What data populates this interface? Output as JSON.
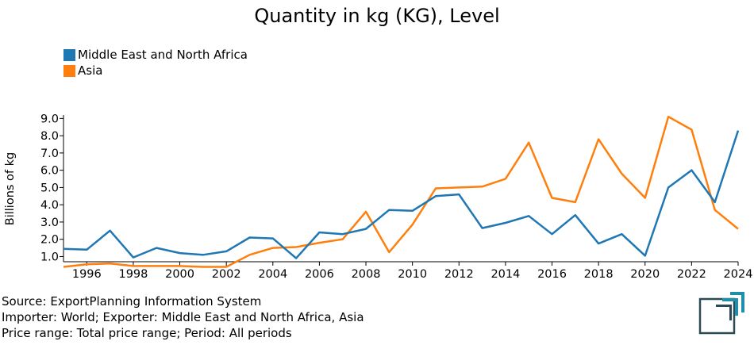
{
  "chart_data": {
    "type": "line",
    "title": "Quantity in kg (KG), Level",
    "xlabel": "",
    "ylabel": "Billions of kg",
    "x": [
      1995,
      1996,
      1997,
      1998,
      1999,
      2000,
      2001,
      2002,
      2003,
      2004,
      2005,
      2006,
      2007,
      2008,
      2009,
      2010,
      2011,
      2012,
      2013,
      2014,
      2015,
      2016,
      2017,
      2018,
      2019,
      2020,
      2021,
      2022,
      2023,
      2024
    ],
    "series": [
      {
        "name": "Middle East and North Africa",
        "color": "#1f77b4",
        "values": [
          1.45,
          1.4,
          2.5,
          0.95,
          1.5,
          1.2,
          1.1,
          1.3,
          2.1,
          2.05,
          0.9,
          2.4,
          2.3,
          2.6,
          3.7,
          3.65,
          4.5,
          4.6,
          2.65,
          2.95,
          3.35,
          2.3,
          3.4,
          1.75,
          2.3,
          1.05,
          5.0,
          6.0,
          4.15,
          8.3
        ]
      },
      {
        "name": "Asia",
        "color": "#ff7f0e",
        "values": [
          0.4,
          0.55,
          0.6,
          0.45,
          0.45,
          0.45,
          0.4,
          0.4,
          1.1,
          1.5,
          1.55,
          1.8,
          2.0,
          3.6,
          1.25,
          2.85,
          4.95,
          5.0,
          5.05,
          5.5,
          7.6,
          4.4,
          4.15,
          7.8,
          5.8,
          4.4,
          9.1,
          8.35,
          3.7,
          2.6
        ]
      }
    ],
    "xlim": [
      1995,
      2024
    ],
    "ylim": [
      0.7,
      9.2
    ],
    "yticks": [
      1.0,
      2.0,
      3.0,
      4.0,
      5.0,
      6.0,
      7.0,
      8.0,
      9.0
    ],
    "ytick_labels": [
      "1.0",
      "2.0",
      "3.0",
      "4.0",
      "5.0",
      "6.0",
      "7.0",
      "8.0",
      "9.0"
    ],
    "xticks": [
      1996,
      1998,
      2000,
      2002,
      2004,
      2006,
      2008,
      2010,
      2012,
      2014,
      2016,
      2018,
      2020,
      2022,
      2024
    ],
    "xtick_labels": [
      "1996",
      "1998",
      "2000",
      "2002",
      "2004",
      "2006",
      "2008",
      "2010",
      "2012",
      "2014",
      "2016",
      "2018",
      "2020",
      "2022",
      "2024"
    ],
    "legend_position": "top-left",
    "grid": false
  },
  "footer": {
    "source": "Source: ExportPlanning Information System",
    "importer": "Importer: World; Exporter: Middle East and North Africa, Asia",
    "price": "Price range: Total price range; Period: All periods"
  },
  "logo": {
    "icon": "exportplanning-logo-icon",
    "color": "#1e8fa8",
    "dark": "#2b4a57"
  }
}
